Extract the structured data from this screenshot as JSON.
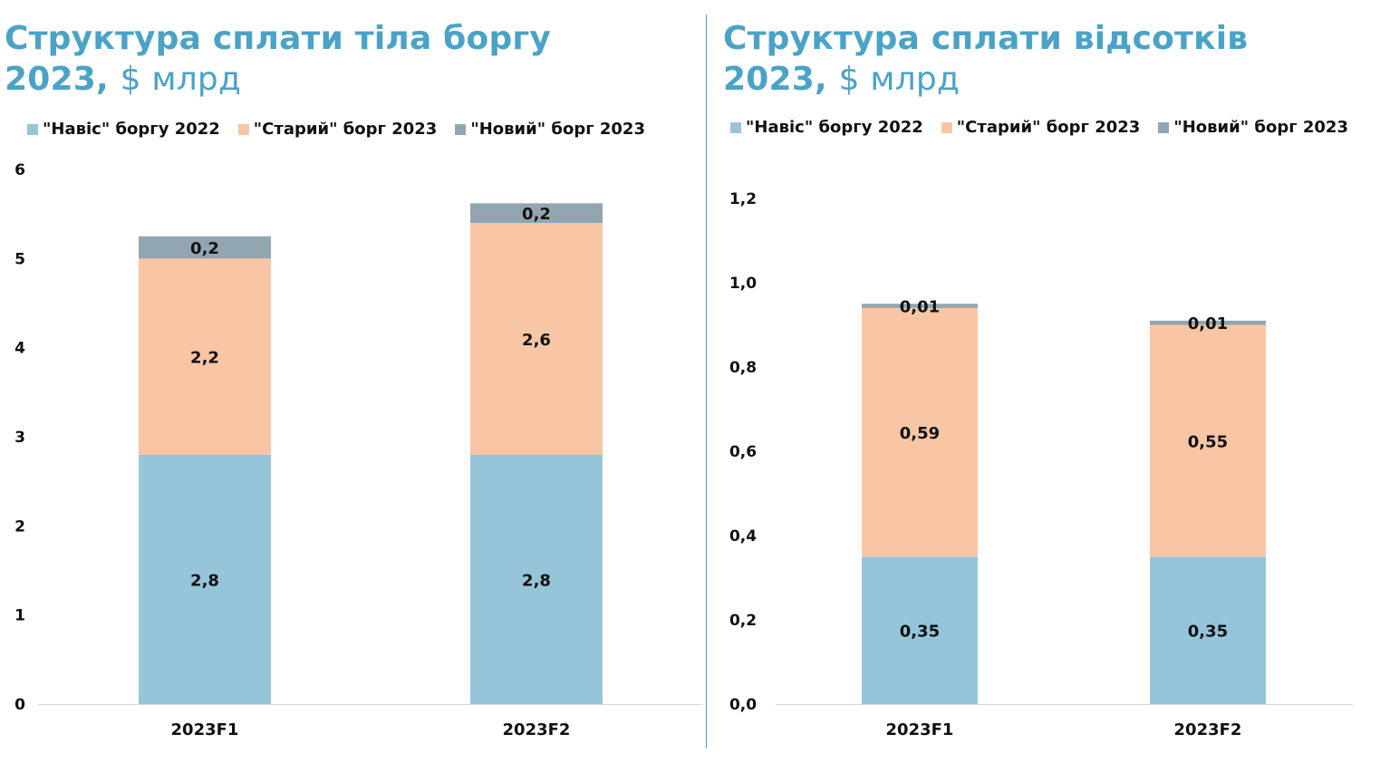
{
  "colors": {
    "title": "#4aa3c7",
    "overhang_2022": "#96c5da",
    "old_debt_2023": "#f8c6a5",
    "new_debt_2023": "#91a6b1",
    "divider": "#4aa3c7",
    "axis": "#d9d9d9"
  },
  "chart_data": [
    {
      "type": "bar",
      "stacked": true,
      "title": "Структура сплати тіла боргу",
      "title_year": "2023,",
      "title_unit": "$ млрд",
      "categories": [
        "2023F1",
        "2023F2"
      ],
      "series": [
        {
          "name": "\"Навіс\" боргу 2022",
          "values": [
            2.8,
            2.8
          ],
          "labels": [
            "2,8",
            "2,8"
          ],
          "color": "#96c5da"
        },
        {
          "name": "\"Старий\" борг 2023",
          "values": [
            2.2,
            2.6
          ],
          "labels": [
            "2,2",
            "2,6"
          ],
          "color": "#f8c6a5"
        },
        {
          "name": "\"Новий\" борг 2023",
          "values": [
            0.25,
            0.22
          ],
          "labels": [
            "0,2",
            "0,2"
          ],
          "color": "#91a6b1"
        }
      ],
      "yticks": [
        "0",
        "1",
        "2",
        "3",
        "4",
        "5",
        "6"
      ],
      "ytick_values": [
        0,
        1,
        2,
        3,
        4,
        5,
        6
      ],
      "ylim": [
        0,
        6
      ],
      "xlabel": "",
      "ylabel": "",
      "legend": "top"
    },
    {
      "type": "bar",
      "stacked": true,
      "title": "Структура сплати відсотків",
      "title_year": "2023,",
      "title_unit": "$ млрд",
      "categories": [
        "2023F1",
        "2023F2"
      ],
      "series": [
        {
          "name": "\"Навіс\" боргу 2022",
          "values": [
            0.35,
            0.35
          ],
          "labels": [
            "0,35",
            "0,35"
          ],
          "color": "#96c5da"
        },
        {
          "name": "\"Старий\" борг 2023",
          "values": [
            0.59,
            0.55
          ],
          "labels": [
            "0,59",
            "0,55"
          ],
          "color": "#f8c6a5"
        },
        {
          "name": "\"Новий\" борг 2023",
          "values": [
            0.01,
            0.01
          ],
          "labels": [
            "0,01",
            "0,01"
          ],
          "color": "#91a6b1"
        }
      ],
      "yticks": [
        "0,0",
        "0,2",
        "0,4",
        "0,6",
        "0,8",
        "1,0",
        "1,2"
      ],
      "ytick_values": [
        0,
        0.2,
        0.4,
        0.6,
        0.8,
        1.0,
        1.2
      ],
      "ylim": [
        0,
        1.2
      ],
      "xlabel": "",
      "ylabel": "",
      "legend": "top"
    }
  ]
}
